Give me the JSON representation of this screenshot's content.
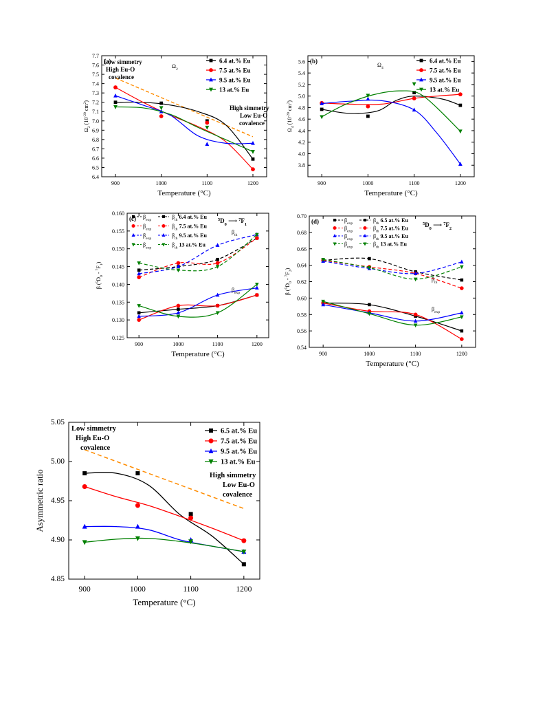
{
  "chart_data": [
    {
      "id": "a",
      "type": "scatter",
      "panel_label": "(a)",
      "inset_label": "Ω",
      "inset_sub": "2",
      "xlabel": "Temperature (°C)",
      "ylabel_main": "Ω",
      "ylabel_sub": "2",
      "ylabel_rest": " (10",
      "ylabel_exp": "-20",
      "ylabel_unit": " cm",
      "ylabel_unit_exp": "2",
      "ylabel_close": ")",
      "x": [
        900,
        1000,
        1100,
        1200
      ],
      "xlim": [
        870,
        1230
      ],
      "ylim": [
        6.4,
        7.7
      ],
      "yticks": [
        "6.4",
        "6.5",
        "6.6",
        "6.7",
        "6.8",
        "6.9",
        "7.0",
        "7.1",
        "7.2",
        "7.3",
        "7.4",
        "7.5",
        "7.6",
        "7.7"
      ],
      "xticks": [
        "900",
        "1000",
        "1100",
        "1200"
      ],
      "series": [
        {
          "name": "6.4 at.% Eu",
          "color": "#000000",
          "marker": "square",
          "values": [
            7.2,
            7.19,
            7.0,
            6.59
          ],
          "fit": [
            7.2,
            7.2,
            7.17,
            7.1,
            6.96,
            6.59
          ]
        },
        {
          "name": "7.5 at.% Eu",
          "color": "#ff0000",
          "marker": "circle",
          "values": [
            7.36,
            7.05,
            6.98,
            6.48
          ],
          "fit": [
            7.36,
            7.2,
            7.06,
            6.94,
            6.78,
            6.48
          ]
        },
        {
          "name": "9.5 at.% Eu",
          "color": "#0000ff",
          "marker": "triangle-up",
          "values": [
            7.27,
            7.1,
            6.75,
            6.76
          ],
          "fit": [
            7.27,
            7.17,
            7.06,
            6.84,
            6.76,
            6.76
          ]
        },
        {
          "name": "13 at.% Eu",
          "color": "#008000",
          "marker": "triangle-down",
          "values": [
            7.15,
            7.14,
            6.93,
            6.67
          ],
          "fit": [
            7.15,
            7.14,
            7.07,
            6.93,
            6.8,
            6.67
          ]
        }
      ],
      "trend": {
        "color": "#ff8c00",
        "y": [
          7.46,
          6.83
        ]
      },
      "annotations": [
        {
          "lines": [
            "Low simmetry",
            "High Eu-O",
            "covalence"
          ]
        },
        {
          "lines": [
            "High simmetry",
            "Low Eu-O",
            "covalence"
          ]
        }
      ]
    },
    {
      "id": "b",
      "type": "scatter",
      "panel_label": "(b)",
      "inset_label": "Ω",
      "inset_sub": "4",
      "xlabel": "Temperature (°C)",
      "ylabel_main": "Ω",
      "ylabel_sub": "4",
      "ylabel_rest": " (10",
      "ylabel_exp": "-20",
      "ylabel_unit": " cm",
      "ylabel_unit_exp": "2",
      "ylabel_close": ")",
      "x": [
        900,
        1000,
        1100,
        1200
      ],
      "xlim": [
        870,
        1230
      ],
      "ylim": [
        3.6,
        5.7
      ],
      "yticks": [
        "3.8",
        "4.0",
        "4.2",
        "4.4",
        "4.6",
        "4.8",
        "5.0",
        "5.2",
        "5.4",
        "5.6"
      ],
      "xticks": [
        "900",
        "1000",
        "1100",
        "1200"
      ],
      "series": [
        {
          "name": "6.4 at.% Eu",
          "color": "#000000",
          "marker": "square",
          "values": [
            4.77,
            4.65,
            5.06,
            4.84
          ]
        },
        {
          "name": "7.5 at.% Eu",
          "color": "#ff0000",
          "marker": "circle",
          "values": [
            4.88,
            4.82,
            4.96,
            5.03
          ]
        },
        {
          "name": "9.5 at.% Eu",
          "color": "#0000ff",
          "marker": "triangle-up",
          "values": [
            4.87,
            4.95,
            4.76,
            3.82
          ]
        },
        {
          "name": "13 at.% Eu",
          "color": "#008000",
          "marker": "triangle-down",
          "values": [
            4.64,
            5.01,
            5.21,
            4.39
          ]
        }
      ]
    },
    {
      "id": "c",
      "type": "line",
      "panel_label": "(c)",
      "xlabel": "Temperature (°C)",
      "ylim": [
        0.125,
        0.16
      ],
      "yticks": [
        "0.125",
        "0.130",
        "0.135",
        "0.140",
        "0.145",
        "0.150",
        "0.155",
        "0.160"
      ],
      "xticks": [
        "900",
        "1000",
        "1100",
        "1200"
      ],
      "x": [
        900,
        1000,
        1100,
        1200
      ],
      "xlim": [
        870,
        1230
      ],
      "series": [
        {
          "name": "6.4 at.% Eu",
          "color": "#000000",
          "marker": "square",
          "exp": [
            0.132,
            0.133,
            0.134,
            0.137
          ],
          "th": [
            0.144,
            0.145,
            0.147,
            0.153
          ]
        },
        {
          "name": "7.5 at.% Eu",
          "color": "#ff0000",
          "marker": "circle",
          "exp": [
            0.13,
            0.134,
            0.134,
            0.137
          ],
          "th": [
            0.142,
            0.146,
            0.146,
            0.153
          ]
        },
        {
          "name": "9.5 at.% Eu",
          "color": "#0000ff",
          "marker": "triangle-up",
          "exp": [
            0.131,
            0.132,
            0.137,
            0.139
          ],
          "th": [
            0.143,
            0.145,
            0.151,
            0.154
          ]
        },
        {
          "name": "13 at.% Eu",
          "color": "#008000",
          "marker": "triangle-down",
          "exp": [
            0.134,
            0.131,
            0.132,
            0.14
          ],
          "th": [
            0.146,
            0.144,
            0.145,
            0.154
          ]
        }
      ]
    },
    {
      "id": "d",
      "type": "line",
      "panel_label": "(d)",
      "xlabel": "Temperature (°C)",
      "ylim": [
        0.54,
        0.7
      ],
      "yticks": [
        "0.54",
        "0.56",
        "0.58",
        "0.60",
        "0.62",
        "0.64",
        "0.66",
        "0.68",
        "0.70"
      ],
      "xticks": [
        "900",
        "1000",
        "1100",
        "1200"
      ],
      "x": [
        900,
        1000,
        1100,
        1200
      ],
      "xlim": [
        870,
        1230
      ],
      "series": [
        {
          "name": "6.5 at.% Eu",
          "color": "#000000",
          "marker": "square",
          "exp": [
            0.594,
            0.592,
            0.578,
            0.56
          ],
          "th": [
            0.646,
            0.648,
            0.632,
            0.622
          ]
        },
        {
          "name": "7.5 at.% Eu",
          "color": "#ff0000",
          "marker": "circle",
          "exp": [
            0.594,
            0.584,
            0.58,
            0.55
          ],
          "th": [
            0.646,
            0.638,
            0.63,
            0.612
          ]
        },
        {
          "name": "9.5 at.% Eu",
          "color": "#0000ff",
          "marker": "triangle-up",
          "exp": [
            0.592,
            0.582,
            0.572,
            0.582
          ],
          "th": [
            0.645,
            0.636,
            0.63,
            0.644
          ]
        },
        {
          "name": "13 at.% Eu",
          "color": "#008000",
          "marker": "triangle-down",
          "exp": [
            0.596,
            0.581,
            0.567,
            0.577
          ],
          "th": [
            0.647,
            0.637,
            0.623,
            0.638
          ]
        }
      ]
    },
    {
      "id": "e",
      "type": "scatter",
      "xlabel": "Temperature (°C)",
      "ylabel": "Asymmetric ratio",
      "x": [
        900,
        1000,
        1100,
        1200
      ],
      "xlim": [
        870,
        1230
      ],
      "ylim": [
        4.85,
        5.05
      ],
      "yticks": [
        "4.85",
        "4.90",
        "4.95",
        "5.00",
        "5.05"
      ],
      "xticks": [
        "900",
        "1000",
        "1100",
        "1200"
      ],
      "series": [
        {
          "name": "6.5 at.% Eu",
          "color": "#000000",
          "marker": "square",
          "values": [
            4.985,
            4.985,
            4.933,
            4.869
          ],
          "fit": [
            4.985,
            4.985,
            4.97,
            4.932,
            4.905,
            4.869
          ]
        },
        {
          "name": "7.5 at.% Eu",
          "color": "#ff0000",
          "marker": "circle",
          "values": [
            4.968,
            4.944,
            4.928,
            4.899
          ],
          "fit": [
            4.968,
            4.955,
            4.944,
            4.93,
            4.915,
            4.899
          ]
        },
        {
          "name": "9.5 at.% Eu",
          "color": "#0000ff",
          "marker": "triangle-up",
          "values": [
            4.917,
            4.917,
            4.9,
            4.885
          ],
          "fit": [
            4.917,
            4.917,
            4.913,
            4.9,
            4.892,
            4.885
          ]
        },
        {
          "name": "13 at.% Eu",
          "color": "#008000",
          "marker": "triangle-down",
          "values": [
            4.897,
            4.902,
            4.898,
            4.885
          ],
          "fit": [
            4.897,
            4.901,
            4.902,
            4.898,
            4.892,
            4.885
          ]
        }
      ],
      "trend": {
        "color": "#ff8c00",
        "y": [
          5.015,
          4.94
        ]
      },
      "annotations": [
        {
          "lines": [
            "Low simmetry",
            "High Eu-O",
            "covalence"
          ]
        },
        {
          "lines": [
            "High simmetry",
            "Low Eu-O",
            "covalence"
          ]
        }
      ]
    }
  ],
  "labels": {
    "c_th": "β",
    "c_th_sub": "th",
    "c_exp": "β",
    "c_exp_sub": "exp",
    "c_trans": "D",
    "c_trans_to": "F",
    "c_trans_j": "1",
    "d_trans_j": "2",
    "d_th": "β",
    "d_th_sub": "th",
    "d_exp": "β",
    "d_exp_sub": "exp",
    "c_ylabel": "β (",
    "c_ylabel_d": "D",
    "c_ylabel_f": "F",
    "beta_exp": "exp",
    "beta_th": "th"
  }
}
